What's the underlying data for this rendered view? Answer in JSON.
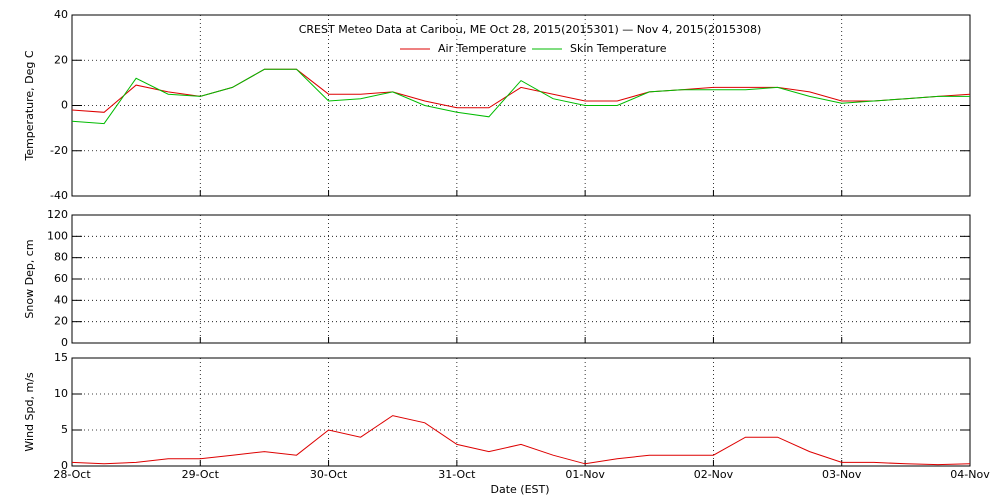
{
  "chart_data": [
    {
      "type": "line",
      "title": "CREST Meteo Data at Caribou, ME   Oct 28, 2015(2015301) — Nov  4, 2015(2015308)",
      "y_label": "Temperature, Deg C",
      "ylim": [
        -40,
        40
      ],
      "yticks": [
        -40,
        -20,
        0,
        20,
        40
      ],
      "grid": true,
      "series": [
        {
          "name": "Air Temperature",
          "color": "#dd0000",
          "values": [
            -2,
            -3,
            9,
            6,
            4,
            8,
            16,
            16,
            5,
            5,
            6,
            2,
            -1,
            -1,
            8,
            5,
            2,
            2,
            6,
            7,
            8,
            8,
            8,
            6,
            2,
            2,
            3,
            4,
            5
          ]
        },
        {
          "name": "Skin Temperature",
          "color": "#00bb00",
          "values": [
            -7,
            -8,
            12,
            5,
            4,
            8,
            16,
            16,
            2,
            3,
            6,
            0,
            -3,
            -5,
            11,
            3,
            0,
            0,
            6,
            7,
            7,
            7,
            8,
            4,
            1,
            2,
            3,
            4,
            4
          ]
        }
      ]
    },
    {
      "type": "line",
      "y_label": "Snow Dep, cm",
      "ylim": [
        0,
        120
      ],
      "yticks": [
        0,
        20,
        40,
        60,
        80,
        100,
        120
      ],
      "grid": true
    },
    {
      "type": "line",
      "y_label": "Wind Spd, m/s",
      "x_label": "Date (EST)",
      "ylim": [
        0,
        15
      ],
      "yticks": [
        0,
        5,
        10,
        15
      ],
      "grid": true,
      "categories": [
        "28-Oct",
        null,
        null,
        null,
        "29-Oct",
        null,
        null,
        null,
        "30-Oct",
        null,
        null,
        null,
        "31-Oct",
        null,
        null,
        null,
        "01-Nov",
        null,
        null,
        null,
        "02-Nov",
        null,
        null,
        null,
        "03-Nov",
        null,
        null,
        null,
        "04-Nov"
      ],
      "series": [
        {
          "color": "#dd0000",
          "values": [
            0.5,
            0.3,
            0.5,
            1,
            1,
            1.5,
            2,
            1.5,
            5,
            4,
            7,
            6,
            3,
            2,
            3,
            1.5,
            0.3,
            1,
            1.5,
            1.5,
            1.5,
            4,
            4,
            2,
            0.5,
            0.5,
            0.3,
            0.2,
            0.3
          ]
        }
      ]
    }
  ]
}
